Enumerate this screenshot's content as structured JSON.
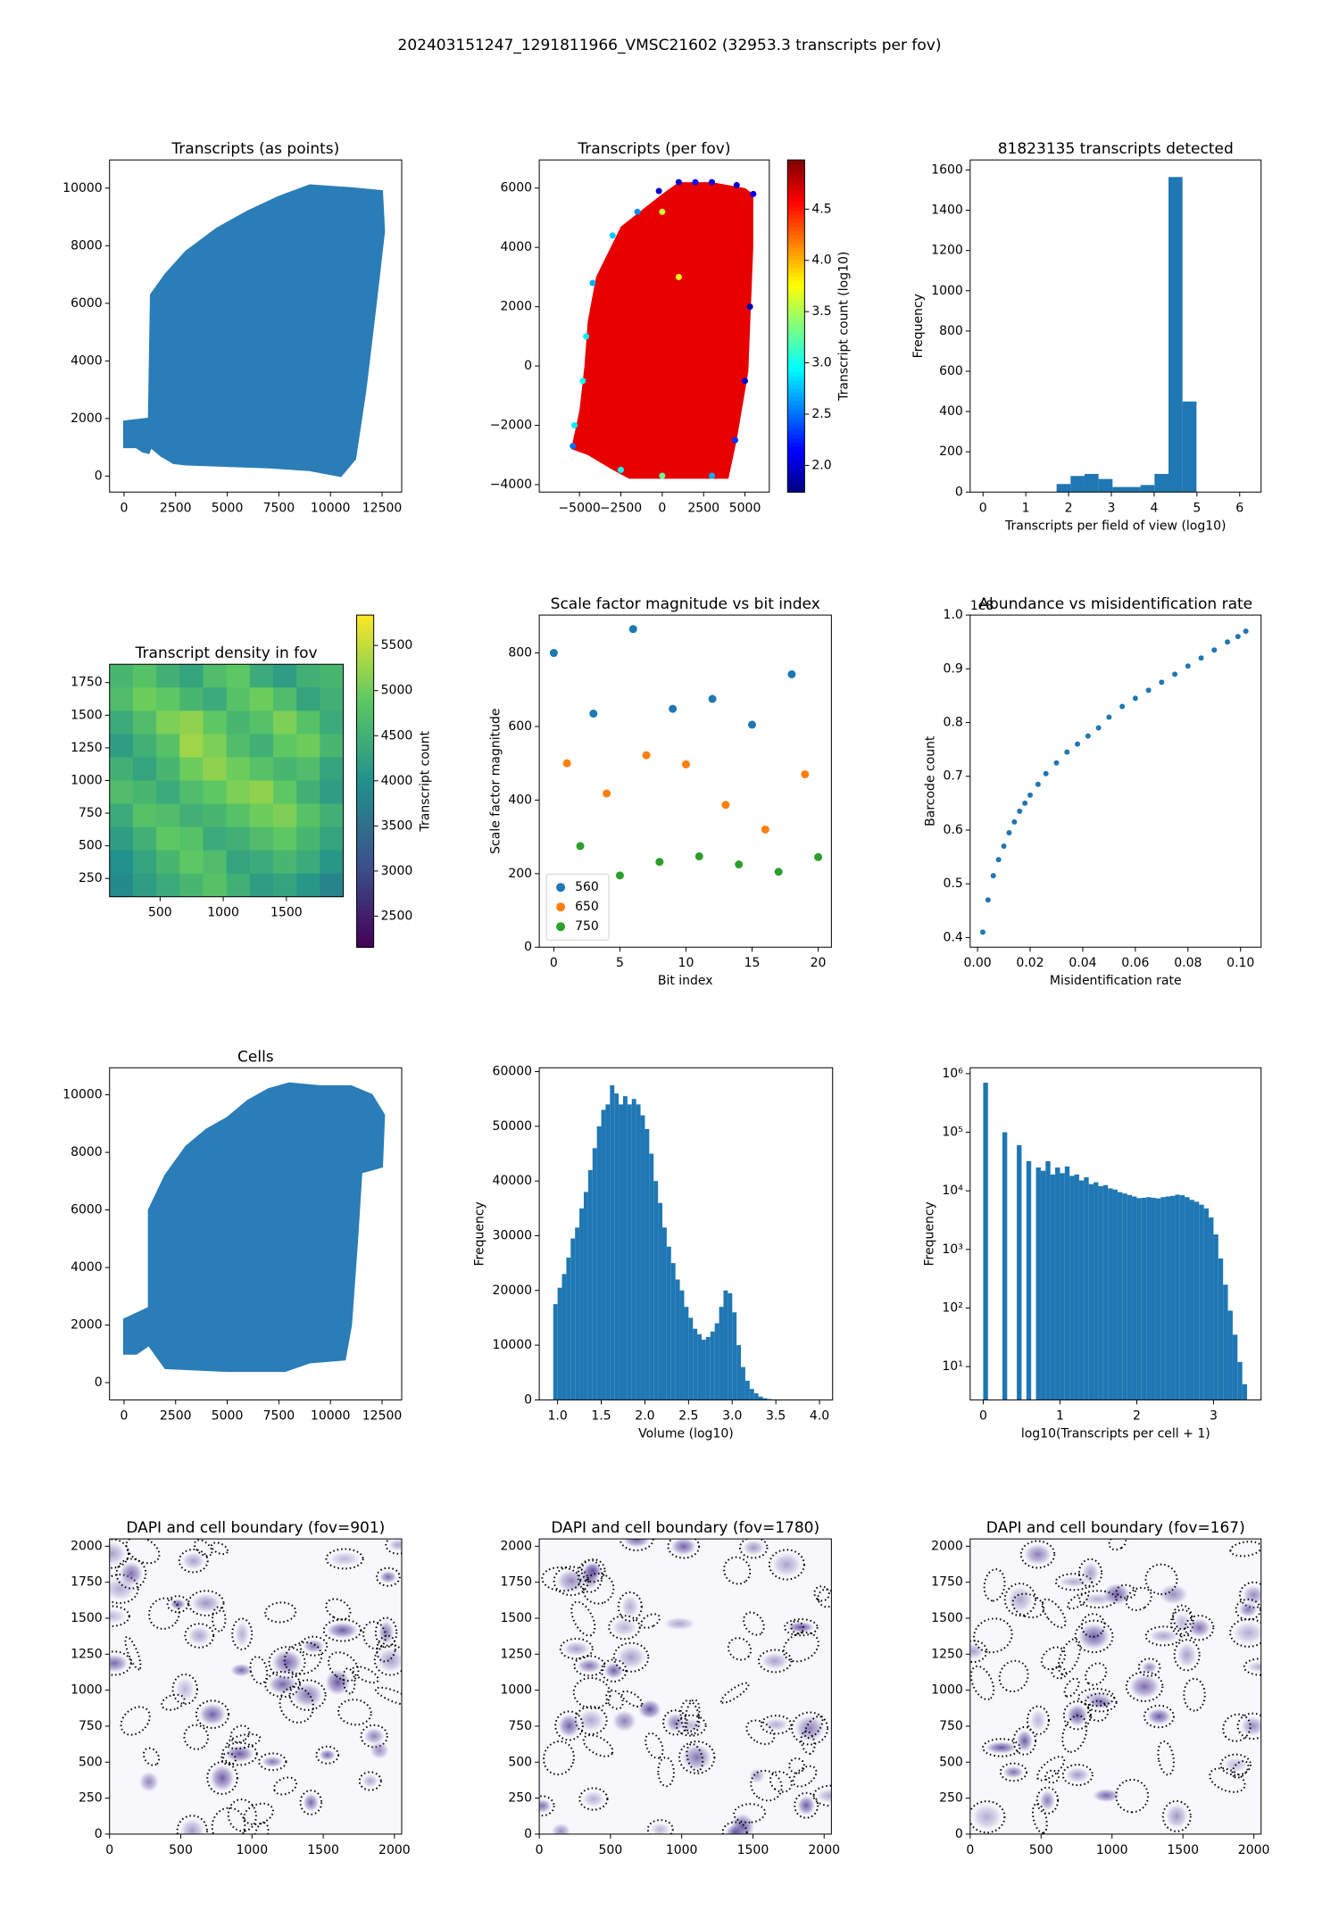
{
  "title": "202403151247_1291811966_VMSC21602 (32953.3 transcripts per fov)",
  "chart_data": [
    {
      "type": "region",
      "title": "Transcripts (as points)",
      "color": "#1f77b4",
      "x": [
        0,
        0,
        1200,
        1300,
        2000,
        3000,
        4500,
        6000,
        7500,
        9000,
        11000,
        12500,
        12600,
        12200,
        11700,
        11200,
        10500,
        9000,
        7000,
        3000,
        2400,
        1800,
        1300,
        1200,
        900,
        600
      ],
      "y": [
        1000,
        1900,
        2000,
        6300,
        7000,
        7800,
        8600,
        9200,
        9700,
        10100,
        10000,
        9900,
        8500,
        6000,
        3000,
        600,
        0,
        200,
        300,
        400,
        450,
        700,
        1000,
        800,
        850,
        1000
      ],
      "xlim": [
        -700,
        13450
      ],
      "xticks": [
        0,
        2500,
        5000,
        7500,
        10000,
        12500
      ],
      "ylim": [
        -555,
        10980
      ],
      "yticks": [
        0,
        2000,
        4000,
        6000,
        8000,
        10000
      ]
    },
    {
      "type": "colored_scatter",
      "title": "Transcripts (per fov)",
      "colormap": "jet",
      "outline": {
        "x": [
          -5500,
          -5000,
          -4700,
          -4500,
          -4000,
          -2500,
          0,
          1000,
          3000,
          5000,
          5500,
          5500,
          5200,
          4500,
          4000,
          -2000,
          -3000,
          -4500
        ],
        "y": [
          -2800,
          -1500,
          0,
          1500,
          3000,
          4700,
          5800,
          6200,
          6200,
          6000,
          5800,
          4000,
          -200,
          -2500,
          -3800,
          -3800,
          -3500,
          -3000
        ]
      },
      "fill_value": 4.65,
      "x": [
        -200,
        1000,
        2000,
        3000,
        4500,
        5500,
        -1500,
        -3000,
        -4200,
        -4600,
        -4800,
        -5300,
        -5400,
        -2500,
        0,
        3000,
        5300,
        5000,
        4400,
        0,
        1000
      ],
      "y": [
        5900,
        6200,
        6200,
        6200,
        6100,
        5800,
        5200,
        4400,
        2800,
        1000,
        -500,
        -2000,
        -2700,
        -3500,
        -3700,
        -3700,
        2000,
        -500,
        -2500,
        5200,
        3000
      ],
      "values": [
        2.0,
        2.0,
        2.2,
        2.0,
        2.0,
        2.1,
        2.6,
        2.8,
        2.7,
        2.9,
        3.0,
        2.9,
        2.5,
        3.0,
        3.3,
        2.7,
        1.9,
        2.0,
        2.3,
        3.6,
        3.7
      ],
      "xlim": [
        -7430,
        6470
      ],
      "xticks": [
        {
          "value": -5000,
          "label": "−5000"
        },
        {
          "value": -2500,
          "label": "−2500"
        },
        0,
        2500,
        5000
      ],
      "ylim": [
        -4250,
        6950
      ],
      "yticks": [
        {
          "value": -4000,
          "label": "−4000"
        },
        {
          "value": -2000,
          "label": "−2000"
        },
        0,
        2000,
        4000,
        6000
      ],
      "colorbar": {
        "label": "Transcript count (log10)",
        "clim": [
          1.74,
          4.98
        ],
        "ticks": [
          {
            "value": 2,
            "label": "2.0"
          },
          2.5,
          {
            "value": 3,
            "label": "3.0"
          },
          3.5,
          {
            "value": 4,
            "label": "4.0"
          },
          4.5
        ]
      }
    },
    {
      "type": "hist",
      "title": "81823135 transcripts detected",
      "color": "#1f77b4",
      "xlabel": "Transcripts per field of view (log10)",
      "ylabel": "Frequency",
      "bins": [
        1.72,
        2.047,
        2.374,
        2.701,
        3.028,
        3.355,
        3.682,
        4.009,
        4.336,
        4.663,
        4.99
      ],
      "counts": [
        40,
        80,
        90,
        65,
        25,
        25,
        35,
        90,
        1565,
        450
      ],
      "xlim": [
        -0.3,
        6.5
      ],
      "xticks": [
        0,
        1,
        2,
        3,
        4,
        5,
        6
      ],
      "ylim": [
        0,
        1650
      ],
      "yticks": [
        0,
        200,
        400,
        600,
        800,
        1000,
        1200,
        1400,
        1600
      ]
    },
    {
      "type": "heatmap",
      "title": "Transcript density in fov",
      "colormap": "viridis",
      "z": [
        [
          4600,
          4800,
          4500,
          4300,
          4700,
          4900,
          4400,
          4200,
          4500,
          4600
        ],
        [
          4700,
          5000,
          4900,
          4600,
          4400,
          4800,
          5000,
          4700,
          4300,
          4500
        ],
        [
          4400,
          4700,
          5100,
          5200,
          4900,
          4600,
          4800,
          5100,
          4800,
          4400
        ],
        [
          4200,
          4500,
          4800,
          5300,
          5100,
          4700,
          4500,
          4900,
          5000,
          4600
        ],
        [
          4500,
          4300,
          4600,
          5000,
          5200,
          5000,
          4800,
          4600,
          4700,
          4300
        ],
        [
          4700,
          4600,
          4400,
          4700,
          4900,
          5100,
          5200,
          4900,
          4500,
          4200
        ],
        [
          4400,
          4800,
          4700,
          4500,
          4600,
          4800,
          5000,
          5100,
          4800,
          4500
        ],
        [
          4200,
          4500,
          4900,
          4800,
          4400,
          4500,
          4700,
          4900,
          4600,
          4300
        ],
        [
          4000,
          4300,
          4600,
          4900,
          4700,
          4300,
          4400,
          4600,
          4400,
          4100
        ],
        [
          3900,
          4200,
          4400,
          4600,
          4800,
          4500,
          4200,
          4300,
          4100,
          3800
        ]
      ],
      "xlim": [
        100,
        1950
      ],
      "xticks": [
        500,
        1000,
        1500
      ],
      "ylim": [
        110,
        1890
      ],
      "yticks": [
        250,
        500,
        750,
        1000,
        1250,
        1500,
        1750
      ],
      "colorbar": {
        "label": "Transcript count",
        "clim": [
          2156,
          5837
        ],
        "ticks": [
          2500,
          3000,
          3500,
          4000,
          4500,
          5000,
          5500
        ]
      }
    },
    {
      "type": "scatter",
      "title": "Scale factor magnitude vs bit index",
      "xlabel": "Bit index",
      "ylabel": "Scale factor magnitude",
      "legend": "lower left",
      "series": [
        {
          "name": "560",
          "color": "#1f77b4",
          "x": [
            0,
            3,
            6,
            9,
            12,
            15,
            18
          ],
          "y": [
            800,
            635,
            865,
            648,
            675,
            605,
            742
          ]
        },
        {
          "name": "650",
          "color": "#ff7f0e",
          "x": [
            1,
            4,
            7,
            10,
            13,
            16,
            19
          ],
          "y": [
            500,
            418,
            522,
            497,
            387,
            320,
            470
          ]
        },
        {
          "name": "750",
          "color": "#2ca02c",
          "x": [
            2,
            5,
            8,
            11,
            14,
            17,
            20
          ],
          "y": [
            275,
            195,
            232,
            247,
            225,
            205,
            245
          ]
        }
      ],
      "xlim": [
        -1.1,
        21
      ],
      "xticks": [
        0,
        5,
        10,
        15,
        20
      ],
      "ylim": [
        0,
        903
      ],
      "yticks": [
        0,
        200,
        400,
        600,
        800
      ]
    },
    {
      "type": "scatter",
      "title": "Abundance vs misidentification rate",
      "xlabel": "Misidentification rate",
      "ylabel": "Barcode count",
      "y_offset_label": "1e8",
      "series": [
        {
          "color": "#1f77b4",
          "x": [
            0.002,
            0.004,
            0.006,
            0.008,
            0.01,
            0.012,
            0.014,
            0.016,
            0.018,
            0.02,
            0.023,
            0.026,
            0.03,
            0.034,
            0.038,
            0.042,
            0.046,
            0.05,
            0.055,
            0.06,
            0.065,
            0.07,
            0.075,
            0.08,
            0.085,
            0.09,
            0.095,
            0.099,
            0.102
          ],
          "y": [
            0.41,
            0.47,
            0.515,
            0.545,
            0.57,
            0.595,
            0.615,
            0.635,
            0.65,
            0.665,
            0.685,
            0.705,
            0.725,
            0.745,
            0.76,
            0.775,
            0.79,
            0.81,
            0.83,
            0.845,
            0.86,
            0.875,
            0.89,
            0.905,
            0.92,
            0.935,
            0.95,
            0.96,
            0.97
          ]
        }
      ],
      "xlim": [
        -0.0028,
        0.1078
      ],
      "xticks": [
        {
          "value": 0,
          "label": "0.00"
        },
        0.02,
        0.04,
        0.06,
        0.08,
        {
          "value": 0.1,
          "label": "0.10"
        }
      ],
      "ylim": [
        0.382,
        1.0
      ],
      "yticks": [
        0.4,
        0.5,
        0.6,
        0.7,
        0.8,
        0.9,
        {
          "value": 1,
          "label": "1.0"
        }
      ]
    },
    {
      "type": "region",
      "title": "Cells",
      "color": "#1f77b4",
      "x": [
        0,
        0,
        1200,
        1200,
        2000,
        3000,
        4000,
        5000,
        6000,
        6500,
        7000,
        8000,
        9500,
        11000,
        12000,
        12600,
        12500,
        11500,
        11300,
        11000,
        10700,
        9000,
        7800,
        5000,
        2000,
        1500,
        1200,
        600
      ],
      "y": [
        1000,
        2200,
        2600,
        6000,
        7200,
        8200,
        8800,
        9200,
        9800,
        10000,
        10200,
        10400,
        10300,
        10300,
        10000,
        9300,
        7500,
        7300,
        5000,
        2000,
        800,
        700,
        400,
        400,
        500,
        1000,
        1300,
        1000
      ],
      "xlim": [
        -700,
        13450
      ],
      "xticks": [
        0,
        2500,
        5000,
        7500,
        10000,
        12500
      ],
      "ylim": [
        -600,
        10940
      ],
      "yticks": [
        0,
        2000,
        4000,
        6000,
        8000,
        10000
      ]
    },
    {
      "type": "hist",
      "color": "#1f77b4",
      "xlabel": "Volume (log10)",
      "ylabel": "Frequency",
      "bins": [
        0.95,
        1.0,
        1.05,
        1.1,
        1.15,
        1.2,
        1.25,
        1.3,
        1.35,
        1.4,
        1.45,
        1.5,
        1.55,
        1.6,
        1.65,
        1.7,
        1.75,
        1.8,
        1.85,
        1.9,
        1.95,
        2.0,
        2.05,
        2.1,
        2.15,
        2.2,
        2.25,
        2.3,
        2.35,
        2.4,
        2.45,
        2.5,
        2.55,
        2.6,
        2.65,
        2.7,
        2.75,
        2.8,
        2.85,
        2.9,
        2.95,
        3.0,
        3.05,
        3.1,
        3.15,
        3.2,
        3.25,
        3.3,
        3.35,
        3.4,
        3.45,
        3.5,
        3.55,
        3.6,
        3.65,
        3.7,
        3.75,
        3.8,
        3.85,
        3.9
      ],
      "counts": [
        17500,
        20500,
        23000,
        26000,
        29500,
        31500,
        35000,
        38000,
        42000,
        46000,
        50000,
        53000,
        54000,
        57500,
        56000,
        54000,
        55500,
        54000,
        55000,
        54000,
        52000,
        49500,
        45000,
        40000,
        36000,
        31500,
        28000,
        25000,
        22000,
        20000,
        17000,
        15000,
        13000,
        12000,
        11000,
        11500,
        12500,
        14000,
        17000,
        20000,
        19500,
        16000,
        10000,
        6000,
        3500,
        2000,
        1200,
        600,
        300,
        150,
        80,
        40,
        20,
        10,
        5,
        3,
        2,
        1,
        1
      ],
      "xlim": [
        0.79,
        4.15
      ],
      "xticks": [
        {
          "value": 1,
          "label": "1.0"
        },
        1.5,
        {
          "value": 2,
          "label": "2.0"
        },
        2.5,
        {
          "value": 3,
          "label": "3.0"
        },
        3.5,
        {
          "value": 4,
          "label": "4.0"
        }
      ],
      "ylim": [
        0,
        60700
      ],
      "yticks": [
        0,
        10000,
        20000,
        30000,
        40000,
        50000,
        60000
      ]
    },
    {
      "type": "hist",
      "color": "#1f77b4",
      "xlabel": "log10(Transcripts per cell + 1)",
      "ylabel": "Frequency",
      "yscale": "log",
      "bins": [
        0,
        0.0625,
        0.125,
        0.1875,
        0.25,
        0.3125,
        0.375,
        0.4375,
        0.5,
        0.5625,
        0.625,
        0.6875,
        0.75,
        0.8125,
        0.875,
        0.9375,
        1,
        1.0625,
        1.125,
        1.1875,
        1.25,
        1.3125,
        1.375,
        1.4375,
        1.5,
        1.5625,
        1.625,
        1.6875,
        1.75,
        1.8125,
        1.875,
        1.9375,
        2,
        2.0625,
        2.125,
        2.1875,
        2.25,
        2.3125,
        2.375,
        2.4375,
        2.5,
        2.5625,
        2.625,
        2.6875,
        2.75,
        2.8125,
        2.875,
        2.9375,
        3,
        3.0625,
        3.125,
        3.1875,
        3.25,
        3.3125,
        3.375,
        3.4375
      ],
      "counts": [
        700000,
        0,
        0,
        0,
        100000,
        0,
        0,
        60000,
        0,
        32000,
        0,
        25000,
        22000,
        32000,
        19000,
        25000,
        20000,
        26000,
        18000,
        19000,
        15000,
        17000,
        13000,
        14000,
        12000,
        12500,
        11000,
        10500,
        9500,
        9000,
        8500,
        8000,
        7500,
        7600,
        7800,
        7600,
        7400,
        7800,
        8000,
        8200,
        8600,
        8400,
        7800,
        7000,
        6500,
        5800,
        5000,
        3500,
        1800,
        700,
        250,
        90,
        35,
        12,
        5
      ],
      "xlim": [
        -0.17,
        3.62
      ],
      "xticks": [
        0,
        1,
        2,
        3
      ],
      "ylim": [
        2.7,
        1260000
      ],
      "yticks": [
        {
          "value": 10,
          "label": "10¹"
        },
        {
          "value": 100,
          "label": "10²"
        },
        {
          "value": 1000,
          "label": "10³"
        },
        {
          "value": 10000,
          "label": "10⁴"
        },
        {
          "value": 100000,
          "label": "10⁵"
        },
        {
          "value": 1000000,
          "label": "10⁶"
        }
      ]
    },
    {
      "type": "image",
      "title": "DAPI and cell boundary (fov=901)",
      "xlim": [
        0,
        2051
      ],
      "xticks": [
        0,
        500,
        1000,
        1500,
        2000
      ],
      "ylim": [
        0,
        2051
      ],
      "yticks": [
        0,
        250,
        500,
        750,
        1000,
        1250,
        1500,
        1750,
        2000
      ]
    },
    {
      "type": "image",
      "title": "DAPI and cell boundary (fov=1780)",
      "xlim": [
        0,
        2051
      ],
      "xticks": [
        0,
        500,
        1000,
        1500,
        2000
      ],
      "ylim": [
        0,
        2051
      ],
      "yticks": [
        0,
        250,
        500,
        750,
        1000,
        1250,
        1500,
        1750,
        2000
      ]
    },
    {
      "type": "image",
      "title": "DAPI and cell boundary (fov=167)",
      "xlim": [
        0,
        2051
      ],
      "xticks": [
        0,
        500,
        1000,
        1500,
        2000
      ],
      "ylim": [
        0,
        2051
      ],
      "yticks": [
        0,
        250,
        500,
        750,
        1000,
        1250,
        1500,
        1750,
        2000
      ]
    }
  ]
}
